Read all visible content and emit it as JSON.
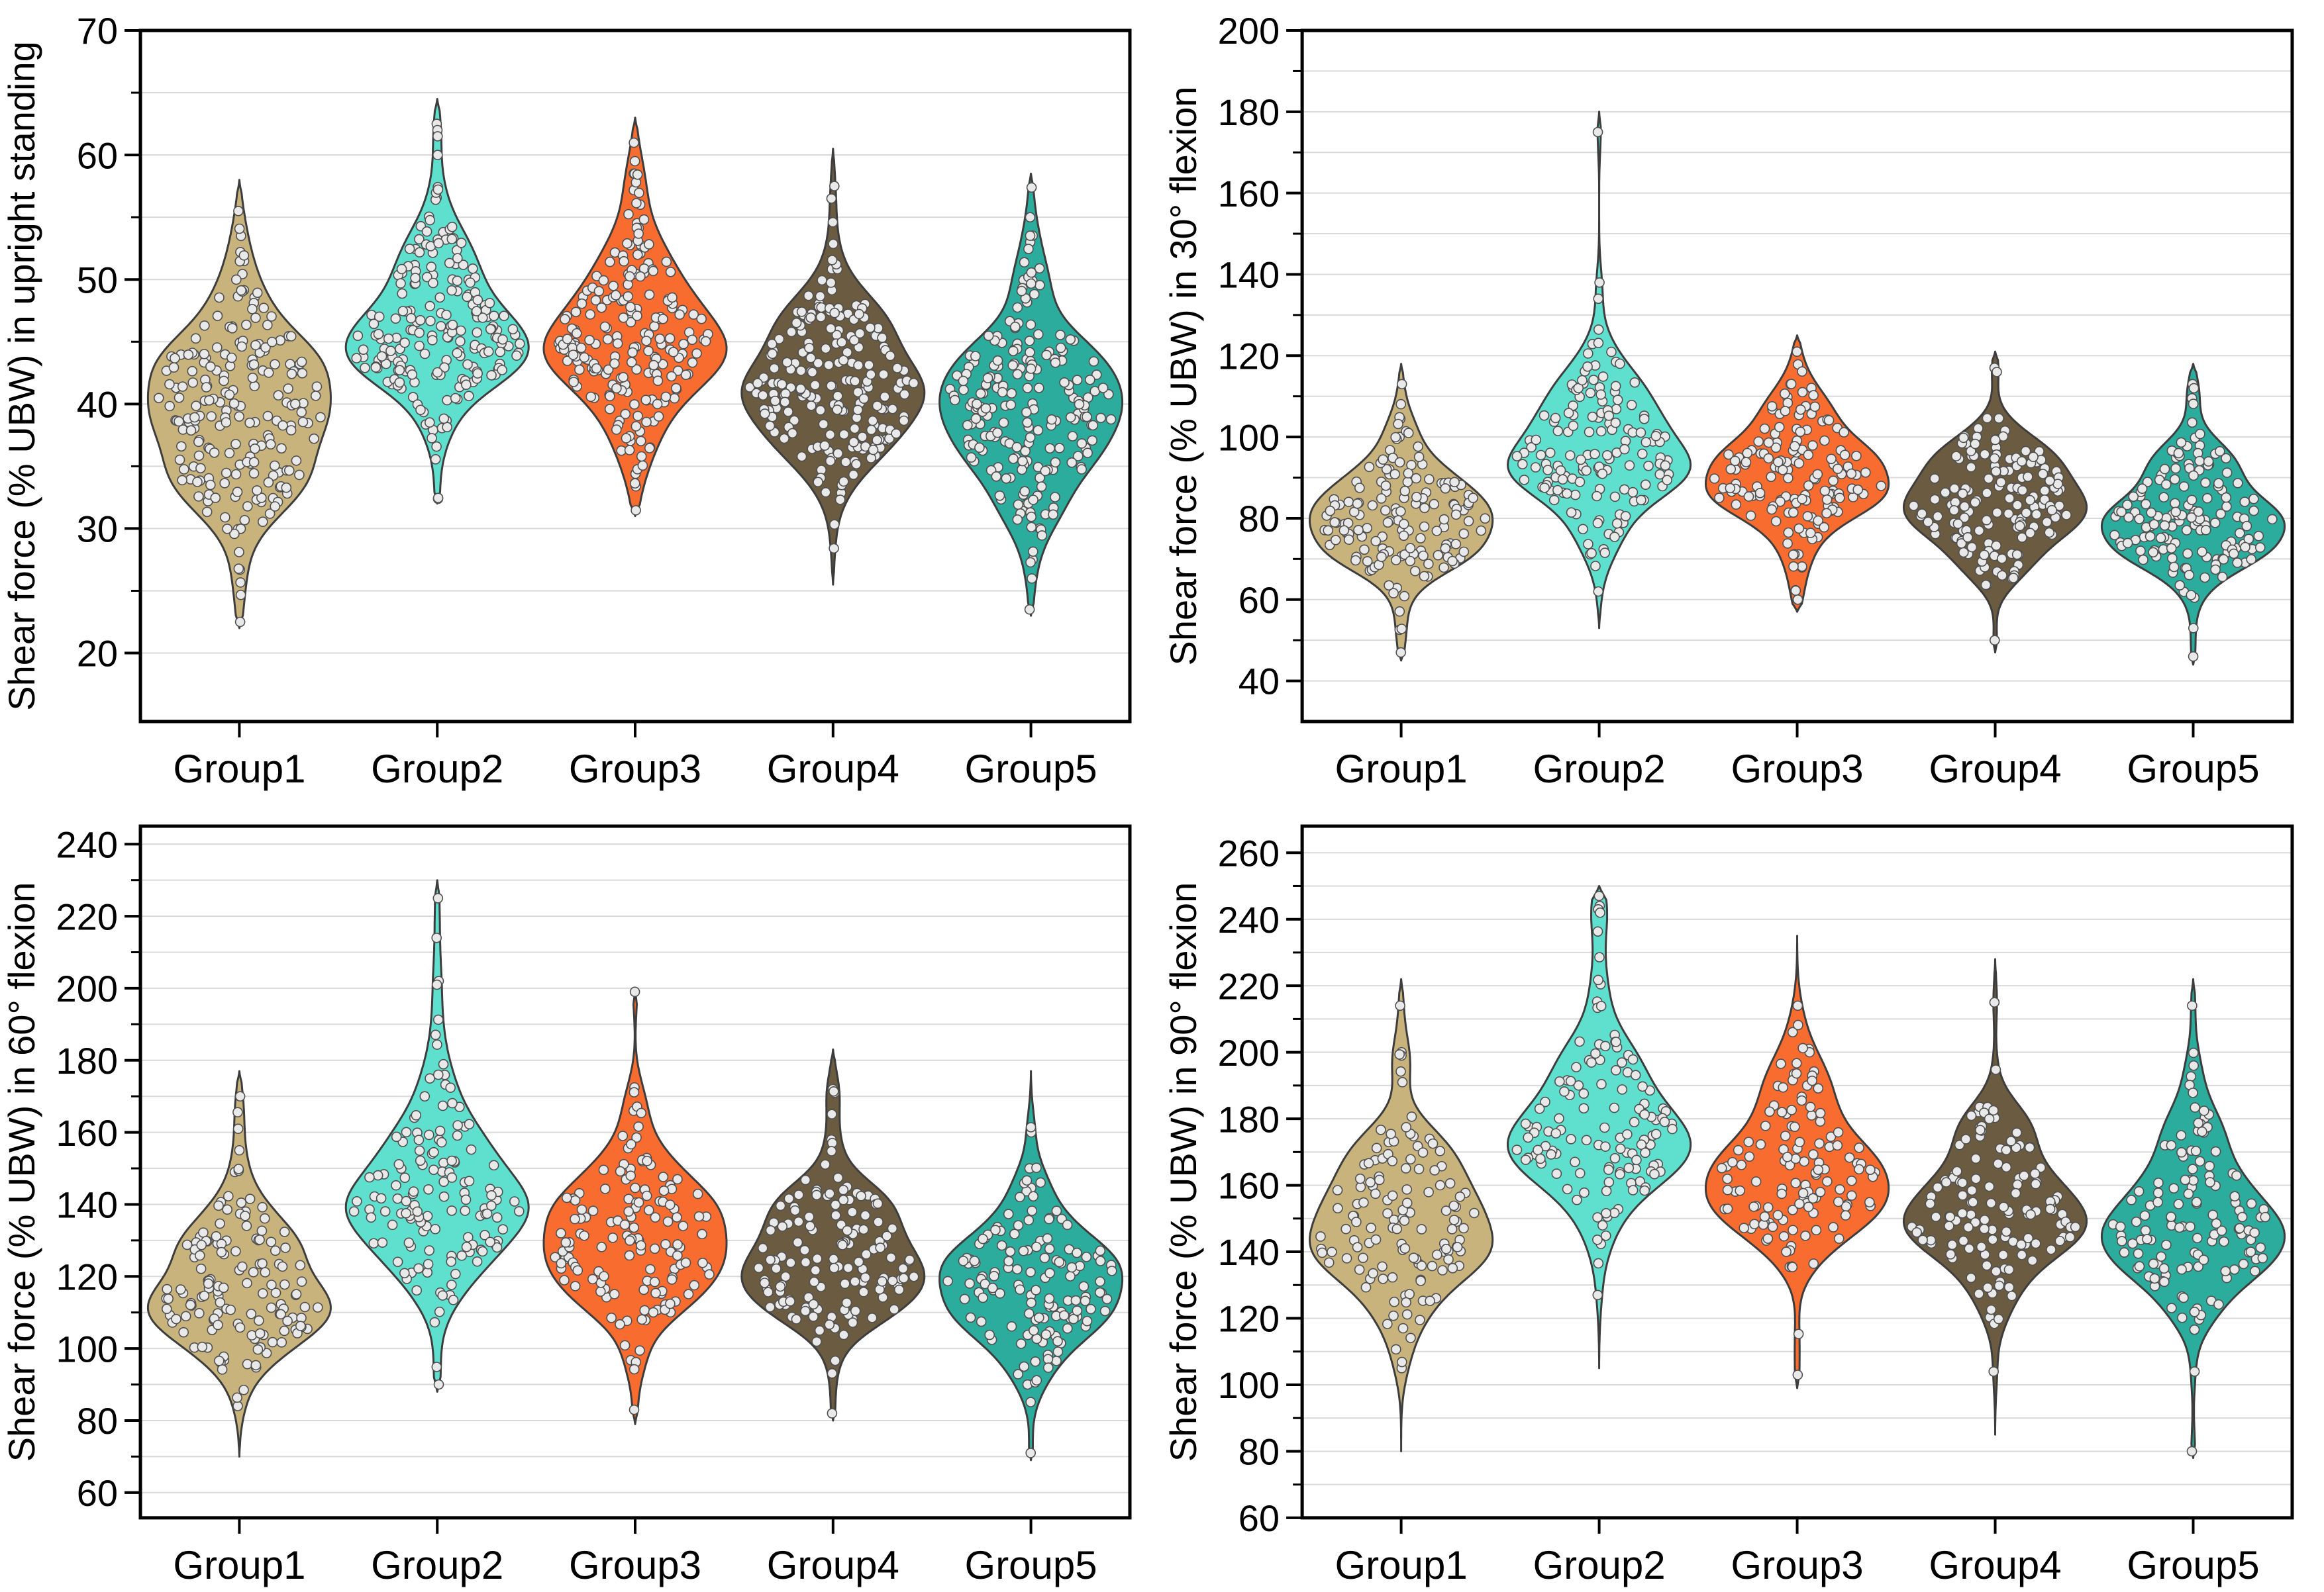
{
  "page": {
    "background": "#FFFFFF"
  },
  "categories": [
    "Group1",
    "Group2",
    "Group3",
    "Group4",
    "Group5"
  ],
  "style": {
    "group_fill_colors": [
      "#C9B37C",
      "#5FE0CE",
      "#F96C30",
      "#6B5C41",
      "#2BAC9C"
    ],
    "violin_outline_color": "#3D3D3D",
    "point_fill": "#E9E9E9",
    "point_outline": "#4F4F4F",
    "point_radius": 7,
    "grid_color": "#D9D9D9",
    "axis_color": "#000000",
    "text_color": "#000000"
  },
  "chart_data": [
    {
      "type": "violin",
      "panel": "upright-standing",
      "ylabel": "Shear force (% UBW) in upright standing",
      "categories": [
        "Group1",
        "Group2",
        "Group3",
        "Group4",
        "Group5"
      ],
      "ylim": [
        14.5,
        70
      ],
      "ytick_major": [
        20,
        30,
        40,
        50,
        60,
        70
      ],
      "ytick_minor": [
        25,
        35,
        45,
        55,
        65
      ],
      "grid_values": [
        20,
        25,
        30,
        35,
        40,
        45,
        50,
        55,
        60,
        65
      ],
      "series": [
        {
          "name": "Group1",
          "color": "#C9B37C",
          "n": 210,
          "seed": 11,
          "min": 22,
          "max": 58,
          "mode": 39.5,
          "sd_low": 4.8,
          "sd_high": 5.2,
          "extras": [
            55.5,
            53.5,
            22.5
          ]
        },
        {
          "name": "Group2",
          "color": "#5FE0CE",
          "n": 210,
          "seed": 12,
          "min": 32,
          "max": 64.5,
          "mode": 46,
          "sd_low": 4.2,
          "sd_high": 5.2,
          "extras": [
            62.5,
            62,
            61.5,
            60
          ]
        },
        {
          "name": "Group3",
          "color": "#F96C30",
          "n": 210,
          "seed": 13,
          "min": 31,
          "max": 63,
          "mode": 45,
          "sd_low": 4.6,
          "sd_high": 5.0,
          "extras": [
            59.5,
            58.5
          ]
        },
        {
          "name": "Group4",
          "color": "#6B5C41",
          "n": 210,
          "seed": 14,
          "min": 25.5,
          "max": 60.5,
          "mode": 42,
          "sd_low": 4.8,
          "sd_high": 5.0,
          "extras": [
            57.5,
            56.5
          ]
        },
        {
          "name": "Group5",
          "color": "#2BAC9C",
          "n": 210,
          "seed": 15,
          "min": 23,
          "max": 58.5,
          "mode": 40,
          "sd_low": 4.6,
          "sd_high": 5.0,
          "extras": [
            55,
            53,
            27.5,
            23.5
          ]
        }
      ]
    },
    {
      "type": "violin",
      "panel": "flexion-30",
      "ylabel": "Shear force (% UBW) in 30° flexion",
      "categories": [
        "Group1",
        "Group2",
        "Group3",
        "Group4",
        "Group5"
      ],
      "ylim": [
        30,
        200
      ],
      "ytick_major": [
        40,
        60,
        80,
        100,
        120,
        140,
        160,
        180,
        200
      ],
      "ytick_minor": [
        50,
        70,
        90,
        110,
        130,
        150,
        170,
        190
      ],
      "grid_values": [
        40,
        50,
        60,
        70,
        80,
        90,
        100,
        110,
        120,
        130,
        140,
        150,
        160,
        170,
        180,
        190
      ],
      "series": [
        {
          "name": "Group1",
          "color": "#C9B37C",
          "n": 150,
          "seed": 21,
          "min": 45,
          "max": 118,
          "mode": 80,
          "sd_low": 9.5,
          "sd_high": 11,
          "extras": [
            113,
            100,
            47
          ]
        },
        {
          "name": "Group2",
          "color": "#5FE0CE",
          "n": 150,
          "seed": 22,
          "min": 53,
          "max": 180,
          "mode": 96,
          "sd_low": 11,
          "sd_high": 14,
          "extras": [
            175,
            138,
            134,
            62
          ]
        },
        {
          "name": "Group3",
          "color": "#F96C30",
          "n": 150,
          "seed": 23,
          "min": 57,
          "max": 125,
          "mode": 90,
          "sd_low": 10,
          "sd_high": 11,
          "extras": [
            121,
            113,
            60
          ]
        },
        {
          "name": "Group4",
          "color": "#6B5C41",
          "n": 150,
          "seed": 24,
          "min": 47,
          "max": 121,
          "mode": 84,
          "sd_low": 10,
          "sd_high": 11,
          "extras": [
            117,
            116,
            50
          ]
        },
        {
          "name": "Group5",
          "color": "#2BAC9C",
          "n": 150,
          "seed": 25,
          "min": 44,
          "max": 118,
          "mode": 80,
          "sd_low": 9.5,
          "sd_high": 11,
          "extras": [
            113,
            112,
            46
          ]
        }
      ]
    },
    {
      "type": "violin",
      "panel": "flexion-60",
      "ylabel": "Shear force (% UBW) in 60° flexion",
      "categories": [
        "Group1",
        "Group2",
        "Group3",
        "Group4",
        "Group5"
      ],
      "ylim": [
        53,
        245
      ],
      "ytick_major": [
        60,
        80,
        100,
        120,
        140,
        160,
        180,
        200,
        220,
        240
      ],
      "ytick_minor": [
        70,
        90,
        110,
        130,
        150,
        170,
        190,
        210,
        230
      ],
      "grid_values": [
        60,
        70,
        80,
        90,
        100,
        110,
        120,
        130,
        140,
        150,
        160,
        170,
        180,
        190,
        200,
        210,
        220,
        230,
        240
      ],
      "series": [
        {
          "name": "Group1",
          "color": "#C9B37C",
          "n": 140,
          "seed": 31,
          "min": 70,
          "max": 177,
          "mode": 116,
          "sd_low": 13,
          "sd_high": 16,
          "extras": [
            170,
            161,
            149,
            84
          ]
        },
        {
          "name": "Group2",
          "color": "#5FE0CE",
          "n": 140,
          "seed": 32,
          "min": 88,
          "max": 230,
          "mode": 140,
          "sd_low": 14,
          "sd_high": 20,
          "extras": [
            225,
            214,
            202,
            201,
            90
          ]
        },
        {
          "name": "Group3",
          "color": "#F96C30",
          "n": 140,
          "seed": 33,
          "min": 79,
          "max": 199,
          "mode": 130,
          "sd_low": 13,
          "sd_high": 16,
          "extras": [
            199,
            166,
            83
          ]
        },
        {
          "name": "Group4",
          "color": "#6B5C41",
          "n": 140,
          "seed": 34,
          "min": 80,
          "max": 183,
          "mode": 122,
          "sd_low": 12,
          "sd_high": 16,
          "extras": [
            172,
            171,
            158,
            82
          ]
        },
        {
          "name": "Group5",
          "color": "#2BAC9C",
          "n": 140,
          "seed": 35,
          "min": 69,
          "max": 177,
          "mode": 117,
          "sd_low": 13,
          "sd_high": 15,
          "extras": [
            160,
            150,
            90,
            71
          ]
        }
      ]
    },
    {
      "type": "violin",
      "panel": "flexion-90",
      "ylabel": "Shear force (% UBW) in 90° flexion",
      "categories": [
        "Group1",
        "Group2",
        "Group3",
        "Group4",
        "Group5"
      ],
      "ylim": [
        60,
        268
      ],
      "ytick_major": [
        60,
        80,
        100,
        120,
        140,
        160,
        180,
        200,
        220,
        240,
        260
      ],
      "ytick_minor": [
        70,
        90,
        110,
        130,
        150,
        170,
        190,
        210,
        230,
        250
      ],
      "grid_values": [
        70,
        80,
        90,
        100,
        110,
        120,
        130,
        140,
        150,
        160,
        170,
        180,
        190,
        200,
        210,
        220,
        230,
        240,
        250,
        260
      ],
      "series": [
        {
          "name": "Group1",
          "color": "#C9B37C",
          "n": 130,
          "seed": 41,
          "min": 80,
          "max": 222,
          "mode": 146,
          "sd_low": 15,
          "sd_high": 19,
          "extras": [
            214,
            200,
            199,
            191,
            105
          ]
        },
        {
          "name": "Group2",
          "color": "#5FE0CE",
          "n": 130,
          "seed": 42,
          "min": 105,
          "max": 250,
          "mode": 175,
          "sd_low": 16,
          "sd_high": 21,
          "extras": [
            247,
            244,
            243,
            127
          ]
        },
        {
          "name": "Group3",
          "color": "#F96C30",
          "n": 130,
          "seed": 43,
          "min": 99,
          "max": 235,
          "mode": 161,
          "sd_low": 14,
          "sd_high": 19,
          "extras": [
            214,
            201,
            200,
            103
          ]
        },
        {
          "name": "Group4",
          "color": "#6B5C41",
          "n": 130,
          "seed": 44,
          "min": 85,
          "max": 228,
          "mode": 150,
          "sd_low": 13,
          "sd_high": 18,
          "extras": [
            215,
            182,
            104
          ]
        },
        {
          "name": "Group5",
          "color": "#2BAC9C",
          "n": 130,
          "seed": 45,
          "min": 78,
          "max": 222,
          "mode": 147,
          "sd_low": 14,
          "sd_high": 18,
          "extras": [
            214,
            196,
            104,
            80
          ]
        }
      ]
    }
  ]
}
